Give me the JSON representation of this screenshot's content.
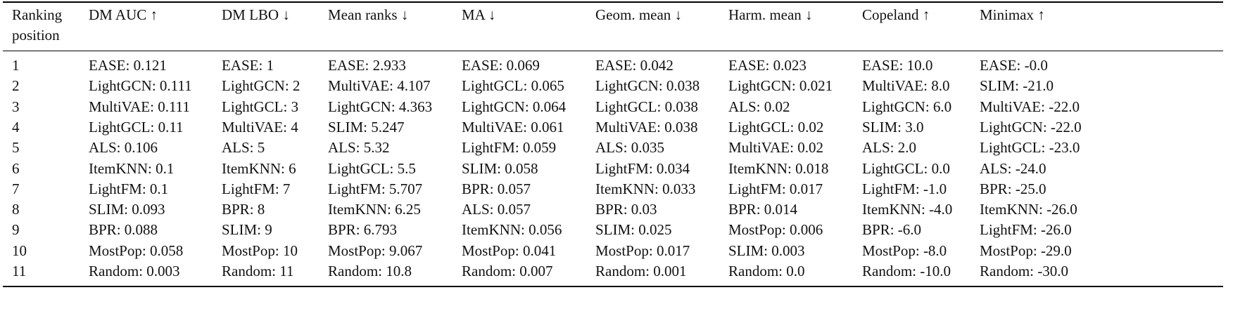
{
  "table": {
    "columns": [
      "Ranking position",
      "DM AUC ↑",
      "DM LBO ↓",
      "Mean ranks ↓",
      "MA ↓",
      "Geom. mean ↓",
      "Harm. mean ↓",
      "Copeland ↑",
      "Minimax ↑"
    ],
    "rows": [
      [
        "1",
        "EASE: 0.121",
        "EASE: 1",
        "EASE: 2.933",
        "EASE: 0.069",
        "EASE: 0.042",
        "EASE: 0.023",
        "EASE: 10.0",
        "EASE: -0.0"
      ],
      [
        "2",
        "LightGCN: 0.111",
        "LightGCN: 2",
        "MultiVAE: 4.107",
        "LightGCL: 0.065",
        "LightGCN: 0.038",
        "LightGCN: 0.021",
        "MultiVAE: 8.0",
        "SLIM: -21.0"
      ],
      [
        "3",
        "MultiVAE: 0.111",
        "LightGCL: 3",
        "LightGCN: 4.363",
        "LightGCN: 0.064",
        "LightGCL: 0.038",
        "ALS: 0.02",
        "LightGCN: 6.0",
        "MultiVAE: -22.0"
      ],
      [
        "4",
        "LightGCL: 0.11",
        "MultiVAE: 4",
        "SLIM: 5.247",
        "MultiVAE: 0.061",
        "MultiVAE: 0.038",
        "LightGCL: 0.02",
        "SLIM: 3.0",
        "LightGCN: -22.0"
      ],
      [
        "5",
        "ALS: 0.106",
        "ALS: 5",
        "ALS: 5.32",
        "LightFM: 0.059",
        "ALS: 0.035",
        "MultiVAE: 0.02",
        "ALS: 2.0",
        "LightGCL: -23.0"
      ],
      [
        "6",
        "ItemKNN: 0.1",
        "ItemKNN: 6",
        "LightGCL: 5.5",
        "SLIM: 0.058",
        "LightFM: 0.034",
        "ItemKNN: 0.018",
        "LightGCL: 0.0",
        "ALS: -24.0"
      ],
      [
        "7",
        "LightFM: 0.1",
        "LightFM: 7",
        "LightFM: 5.707",
        "BPR: 0.057",
        "ItemKNN: 0.033",
        "LightFM: 0.017",
        "LightFM: -1.0",
        "BPR: -25.0"
      ],
      [
        "8",
        "SLIM: 0.093",
        "BPR: 8",
        "ItemKNN: 6.25",
        "ALS: 0.057",
        "BPR: 0.03",
        "BPR: 0.014",
        "ItemKNN: -4.0",
        "ItemKNN: -26.0"
      ],
      [
        "9",
        "BPR: 0.088",
        "SLIM: 9",
        "BPR: 6.793",
        "ItemKNN: 0.056",
        "SLIM: 0.025",
        "MostPop: 0.006",
        "BPR: -6.0",
        "LightFM: -26.0"
      ],
      [
        "10",
        "MostPop: 0.058",
        "MostPop: 10",
        "MostPop: 9.067",
        "MostPop: 0.041",
        "MostPop: 0.017",
        "SLIM: 0.003",
        "MostPop: -8.0",
        "MostPop: -29.0"
      ],
      [
        "11",
        "Random: 0.003",
        "Random: 11",
        "Random: 10.8",
        "Random: 0.007",
        "Random: 0.001",
        "Random: 0.0",
        "Random: -10.0",
        "Random: -30.0"
      ]
    ]
  }
}
